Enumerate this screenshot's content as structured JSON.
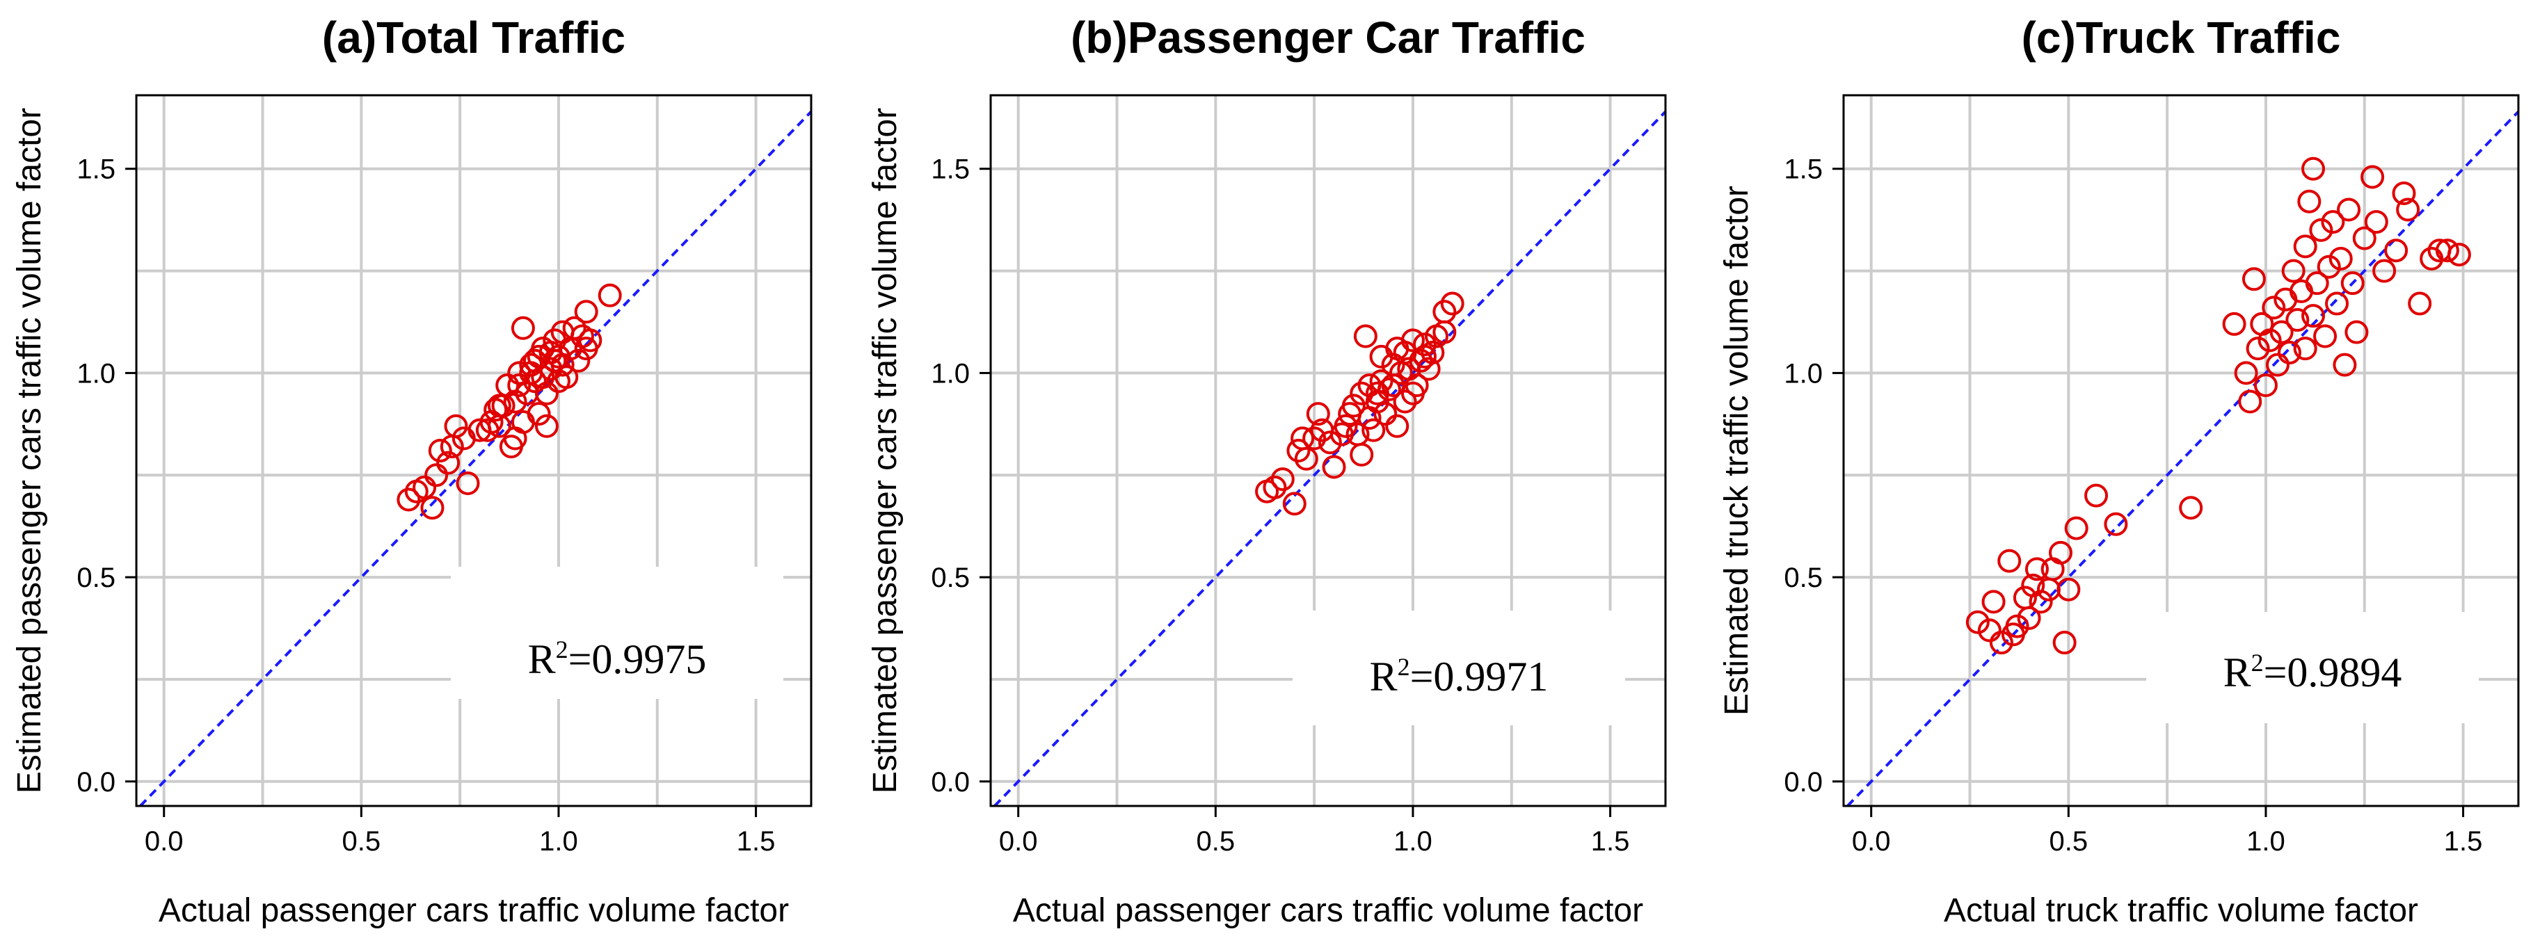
{
  "chart_data": [
    {
      "type": "scatter",
      "title": "(a)Total Traffic",
      "xlabel": "Actual passenger cars traffic volume factor",
      "ylabel": "Estimated passenger cars traffic volume factor",
      "xlim": [
        -0.07,
        1.64
      ],
      "ylim": [
        -0.06,
        1.68
      ],
      "xticks": [
        0.0,
        0.5,
        1.0,
        1.5
      ],
      "yticks": [
        0.0,
        0.5,
        1.0,
        1.5
      ],
      "xtick_labels": [
        "0.0",
        "0.5",
        "1.0",
        "1.5"
      ],
      "ytick_labels": [
        "0.0",
        "0.5",
        "1.0",
        "1.5"
      ],
      "grid": true,
      "reference_line": "y = x",
      "annotation": {
        "r_base": "R",
        "r_exp": "2",
        "value": "=0.9975"
      },
      "points": [
        [
          0.62,
          0.69
        ],
        [
          0.64,
          0.71
        ],
        [
          0.66,
          0.72
        ],
        [
          0.68,
          0.67
        ],
        [
          0.69,
          0.75
        ],
        [
          0.7,
          0.81
        ],
        [
          0.72,
          0.78
        ],
        [
          0.73,
          0.82
        ],
        [
          0.74,
          0.87
        ],
        [
          0.76,
          0.84
        ],
        [
          0.77,
          0.73
        ],
        [
          0.8,
          0.86
        ],
        [
          0.82,
          0.86
        ],
        [
          0.83,
          0.88
        ],
        [
          0.84,
          0.91
        ],
        [
          0.85,
          0.87
        ],
        [
          0.86,
          0.92
        ],
        [
          0.87,
          0.97
        ],
        [
          0.88,
          0.82
        ],
        [
          0.89,
          0.84
        ],
        [
          0.89,
          0.93
        ],
        [
          0.9,
          0.97
        ],
        [
          0.91,
          0.88
        ],
        [
          0.91,
          1.11
        ],
        [
          0.92,
          0.95
        ],
        [
          0.93,
          1.0
        ],
        [
          0.93,
          1.02
        ],
        [
          0.94,
          0.98
        ],
        [
          0.95,
          1.04
        ],
        [
          0.95,
          0.9
        ],
        [
          0.96,
          0.99
        ],
        [
          0.96,
          1.06
        ],
        [
          0.97,
          0.87
        ],
        [
          0.97,
          0.95
        ],
        [
          0.98,
          1.01
        ],
        [
          0.98,
          1.05
        ],
        [
          0.99,
          1.08
        ],
        [
          1.0,
          0.98
        ],
        [
          1.0,
          1.04
        ],
        [
          1.01,
          1.02
        ],
        [
          1.01,
          1.1
        ],
        [
          1.02,
          0.99
        ],
        [
          1.03,
          1.06
        ],
        [
          1.04,
          1.11
        ],
        [
          1.05,
          1.03
        ],
        [
          1.06,
          1.09
        ],
        [
          1.07,
          1.06
        ],
        [
          1.07,
          1.15
        ],
        [
          1.08,
          1.08
        ],
        [
          1.13,
          1.19
        ],
        [
          0.85,
          0.92
        ],
        [
          0.9,
          1.0
        ],
        [
          0.94,
          1.03
        ],
        [
          0.99,
          1.03
        ]
      ]
    },
    {
      "type": "scatter",
      "title": "(b)Passenger Car Traffic",
      "xlabel": "Actual passenger cars traffic volume factor",
      "ylabel": "Estimated passenger cars traffic volume factor",
      "xlim": [
        -0.07,
        1.64
      ],
      "ylim": [
        -0.06,
        1.68
      ],
      "xticks": [
        0.0,
        0.5,
        1.0,
        1.5
      ],
      "yticks": [
        0.0,
        0.5,
        1.0,
        1.5
      ],
      "xtick_labels": [
        "0.0",
        "0.5",
        "1.0",
        "1.5"
      ],
      "ytick_labels": [
        "0.0",
        "0.5",
        "1.0",
        "1.5"
      ],
      "grid": true,
      "reference_line": "y = x",
      "annotation": {
        "r_base": "R",
        "r_exp": "2",
        "value": "=0.9971"
      },
      "points": [
        [
          0.63,
          0.71
        ],
        [
          0.65,
          0.72
        ],
        [
          0.67,
          0.74
        ],
        [
          0.7,
          0.68
        ],
        [
          0.71,
          0.81
        ],
        [
          0.72,
          0.84
        ],
        [
          0.73,
          0.79
        ],
        [
          0.75,
          0.84
        ],
        [
          0.76,
          0.9
        ],
        [
          0.77,
          0.86
        ],
        [
          0.79,
          0.83
        ],
        [
          0.8,
          0.77
        ],
        [
          0.82,
          0.85
        ],
        [
          0.83,
          0.87
        ],
        [
          0.84,
          0.9
        ],
        [
          0.85,
          0.92
        ],
        [
          0.86,
          0.85
        ],
        [
          0.87,
          0.8
        ],
        [
          0.87,
          0.95
        ],
        [
          0.88,
          1.09
        ],
        [
          0.89,
          0.89
        ],
        [
          0.89,
          0.97
        ],
        [
          0.9,
          0.86
        ],
        [
          0.91,
          0.95
        ],
        [
          0.92,
          0.98
        ],
        [
          0.92,
          1.04
        ],
        [
          0.93,
          0.9
        ],
        [
          0.94,
          0.96
        ],
        [
          0.95,
          1.02
        ],
        [
          0.96,
          0.87
        ],
        [
          0.96,
          1.06
        ],
        [
          0.97,
          1.0
        ],
        [
          0.98,
          0.93
        ],
        [
          0.98,
          1.05
        ],
        [
          0.99,
          1.01
        ],
        [
          1.0,
          0.95
        ],
        [
          1.0,
          1.08
        ],
        [
          1.01,
          0.97
        ],
        [
          1.02,
          1.03
        ],
        [
          1.03,
          1.07
        ],
        [
          1.04,
          1.01
        ],
        [
          1.05,
          1.05
        ],
        [
          1.06,
          1.09
        ],
        [
          1.08,
          1.1
        ],
        [
          1.08,
          1.15
        ],
        [
          1.1,
          1.17
        ],
        [
          0.95,
          0.97
        ],
        [
          1.03,
          1.04
        ],
        [
          0.91,
          0.93
        ]
      ]
    },
    {
      "type": "scatter",
      "title": "(c)Truck Traffic",
      "xlabel": "Actual truck traffic volume factor",
      "ylabel": "Estimated truck traffic volume factor",
      "xlim": [
        -0.07,
        1.64
      ],
      "ylim": [
        -0.06,
        1.68
      ],
      "xticks": [
        0.0,
        0.5,
        1.0,
        1.5
      ],
      "yticks": [
        0.0,
        0.5,
        1.0,
        1.5
      ],
      "xtick_labels": [
        "0.0",
        "0.5",
        "1.0",
        "1.5"
      ],
      "ytick_labels": [
        "0.0",
        "0.5",
        "1.0",
        "1.5"
      ],
      "grid": true,
      "reference_line": "y = x",
      "annotation": {
        "r_base": "R",
        "r_exp": "2",
        "value": "=0.9894"
      },
      "points": [
        [
          0.27,
          0.39
        ],
        [
          0.3,
          0.37
        ],
        [
          0.31,
          0.44
        ],
        [
          0.33,
          0.34
        ],
        [
          0.35,
          0.54
        ],
        [
          0.36,
          0.36
        ],
        [
          0.37,
          0.38
        ],
        [
          0.39,
          0.45
        ],
        [
          0.4,
          0.4
        ],
        [
          0.41,
          0.48
        ],
        [
          0.42,
          0.52
        ],
        [
          0.43,
          0.44
        ],
        [
          0.45,
          0.47
        ],
        [
          0.46,
          0.52
        ],
        [
          0.48,
          0.56
        ],
        [
          0.49,
          0.34
        ],
        [
          0.5,
          0.47
        ],
        [
          0.52,
          0.62
        ],
        [
          0.57,
          0.7
        ],
        [
          0.62,
          0.63
        ],
        [
          0.81,
          0.67
        ],
        [
          0.92,
          1.12
        ],
        [
          0.95,
          1.0
        ],
        [
          0.96,
          0.93
        ],
        [
          0.97,
          1.23
        ],
        [
          0.98,
          1.06
        ],
        [
          0.99,
          1.12
        ],
        [
          1.0,
          0.97
        ],
        [
          1.01,
          1.08
        ],
        [
          1.02,
          1.16
        ],
        [
          1.03,
          1.02
        ],
        [
          1.04,
          1.1
        ],
        [
          1.05,
          1.18
        ],
        [
          1.06,
          1.05
        ],
        [
          1.07,
          1.25
        ],
        [
          1.08,
          1.13
        ],
        [
          1.09,
          1.2
        ],
        [
          1.1,
          1.06
        ],
        [
          1.1,
          1.31
        ],
        [
          1.11,
          1.42
        ],
        [
          1.12,
          1.14
        ],
        [
          1.12,
          1.5
        ],
        [
          1.13,
          1.22
        ],
        [
          1.14,
          1.35
        ],
        [
          1.15,
          1.09
        ],
        [
          1.16,
          1.26
        ],
        [
          1.17,
          1.37
        ],
        [
          1.18,
          1.17
        ],
        [
          1.19,
          1.28
        ],
        [
          1.2,
          1.02
        ],
        [
          1.21,
          1.4
        ],
        [
          1.22,
          1.22
        ],
        [
          1.23,
          1.1
        ],
        [
          1.25,
          1.33
        ],
        [
          1.27,
          1.48
        ],
        [
          1.28,
          1.37
        ],
        [
          1.3,
          1.25
        ],
        [
          1.33,
          1.3
        ],
        [
          1.35,
          1.44
        ],
        [
          1.36,
          1.4
        ],
        [
          1.39,
          1.17
        ],
        [
          1.42,
          1.28
        ],
        [
          1.44,
          1.3
        ],
        [
          1.46,
          1.3
        ],
        [
          1.49,
          1.29
        ]
      ]
    }
  ]
}
